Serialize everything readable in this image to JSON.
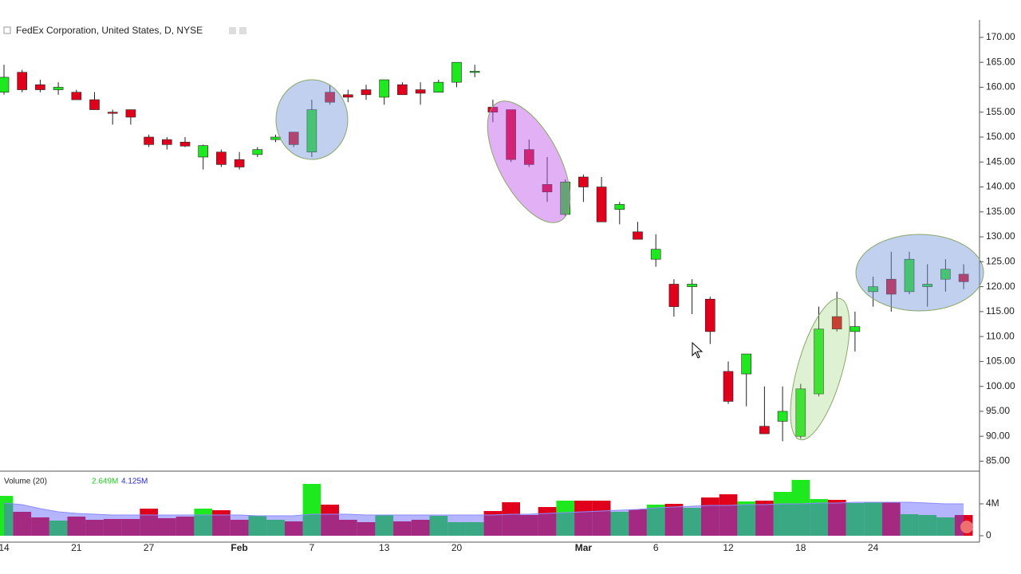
{
  "chart_data": {
    "type": "candlestick",
    "title": "FedEx Corporation, United States, D, NYSE",
    "categories": [
      "14",
      null,
      null,
      null,
      "21",
      null,
      null,
      null,
      "27",
      null,
      null,
      null,
      null,
      "Feb",
      null,
      null,
      null,
      "7",
      null,
      null,
      null,
      "13",
      null,
      null,
      null,
      "20",
      null,
      null,
      null,
      null,
      null,
      null,
      "Mar",
      null,
      null,
      null,
      "6",
      null,
      null,
      null,
      "12",
      null,
      null,
      null,
      "18",
      null,
      null,
      null,
      "24",
      null,
      null,
      null,
      null,
      null
    ],
    "open": [
      159,
      163,
      160.5,
      159.5,
      159,
      157.5,
      155,
      155.5,
      150,
      149.5,
      149,
      146,
      147,
      145.5,
      146.5,
      149.5,
      151,
      147,
      159,
      158.5,
      159.5,
      158,
      160.5,
      159.5,
      159,
      161,
      163,
      156,
      155.5,
      147.5,
      140.5,
      134.5,
      142,
      140,
      135.5,
      131,
      125.5,
      120.5,
      120,
      117.5,
      103,
      102.5,
      92,
      93,
      90,
      98.5,
      114,
      111,
      119,
      121.5,
      119,
      120,
      121.5,
      122.5
    ],
    "high": [
      164.5,
      163.5,
      161.5,
      161,
      159.5,
      159,
      155.5,
      155.5,
      150.5,
      150,
      150,
      148.5,
      147.5,
      147,
      148,
      150.5,
      151,
      157.5,
      160.5,
      159.5,
      160.5,
      161.5,
      161,
      161,
      161.5,
      165,
      164.5,
      157.5,
      155.5,
      149.5,
      146,
      141.5,
      142.5,
      142,
      137,
      133,
      130.5,
      121.5,
      121.5,
      118,
      105,
      106.5,
      100,
      100,
      100.5,
      116,
      119,
      115,
      122,
      127,
      127,
      124.5,
      125.5,
      124.5
    ],
    "low": [
      158.5,
      159,
      159,
      158.5,
      157.5,
      155.5,
      152.5,
      152.5,
      148,
      147.5,
      148,
      143.5,
      144,
      143.5,
      146,
      149,
      148,
      146,
      156.5,
      157,
      157.5,
      156.5,
      158.5,
      156.5,
      159,
      160,
      162,
      153,
      145,
      144,
      137,
      134,
      137,
      133,
      132.5,
      129.5,
      124,
      114,
      114.5,
      108.5,
      96.5,
      96,
      90.5,
      89,
      89.5,
      98,
      111,
      107,
      116,
      115,
      118.5,
      116,
      119,
      119.5
    ],
    "close": [
      162,
      159.5,
      159.5,
      160,
      157.5,
      155.5,
      154.8,
      154,
      148.5,
      148.5,
      148.2,
      148.3,
      144.5,
      144,
      147.5,
      150,
      148.5,
      155.5,
      157,
      158,
      158.5,
      161.5,
      158.5,
      158.8,
      161,
      165,
      163.2,
      155,
      145.5,
      144.5,
      139,
      141,
      140,
      133,
      136.5,
      129.5,
      127.5,
      116,
      120.5,
      111,
      97,
      106.5,
      90.5,
      95,
      99.5,
      111.5,
      111.5,
      112,
      120,
      118.5,
      125.5,
      120.5,
      123.5,
      121
    ],
    "up_color": "#1ee81e",
    "down_color": "#e0001b",
    "ylim": [
      83,
      173.5
    ],
    "yticks": [
      {
        "value": 170,
        "label": "170.00"
      },
      {
        "value": 165,
        "label": "165.00"
      },
      {
        "value": 160,
        "label": "160.00"
      },
      {
        "value": 155,
        "label": "155.00"
      },
      {
        "value": 150,
        "label": "150.00"
      },
      {
        "value": 145,
        "label": "145.00"
      },
      {
        "value": 140,
        "label": "140.00"
      },
      {
        "value": 135,
        "label": "135.00"
      },
      {
        "value": 130,
        "label": "130.00"
      },
      {
        "value": 125,
        "label": "125.00"
      },
      {
        "value": 120,
        "label": "120.00"
      },
      {
        "value": 115,
        "label": "115.00"
      },
      {
        "value": 110,
        "label": "110.00"
      },
      {
        "value": 105,
        "label": "105.00"
      },
      {
        "value": 100,
        "label": "100.00"
      },
      {
        "value": 95,
        "label": "95.00"
      },
      {
        "value": 90,
        "label": "90.00"
      },
      {
        "value": 85,
        "label": "85.00"
      }
    ],
    "volume_title": "Volume (20)",
    "volume_last": "2.649M",
    "volume_ma_last": "4.125M",
    "volume": [
      5.0,
      3.0,
      2.3,
      1.9,
      2.4,
      2.0,
      2.1,
      2.1,
      3.4,
      2.2,
      2.4,
      3.4,
      3.2,
      2.0,
      2.5,
      2.0,
      1.8,
      6.5,
      3.9,
      2.0,
      1.7,
      2.6,
      1.8,
      2.0,
      2.5,
      1.7,
      1.7,
      3.1,
      4.2,
      2.6,
      3.6,
      4.4,
      4.4,
      4.4,
      3.0,
      3.3,
      3.9,
      4.0,
      3.5,
      4.8,
      5.2,
      4.3,
      4.4,
      5.5,
      7.0,
      4.6,
      4.5,
      4.1,
      4.2,
      4.2,
      2.7,
      2.6,
      2.3,
      2.6
    ],
    "volume_ma": [
      4.1,
      3.9,
      3.4,
      3.0,
      2.8,
      2.7,
      2.6,
      2.6,
      2.6,
      2.6,
      2.6,
      2.6,
      2.6,
      2.6,
      2.5,
      2.5,
      2.5,
      2.7,
      2.7,
      2.7,
      2.6,
      2.6,
      2.6,
      2.6,
      2.6,
      2.6,
      2.6,
      2.6,
      2.7,
      2.7,
      2.8,
      2.9,
      3.0,
      3.1,
      3.2,
      3.3,
      3.5,
      3.6,
      3.7,
      3.8,
      3.8,
      3.9,
      3.9,
      4.0,
      4.0,
      4.1,
      4.1,
      4.2,
      4.2,
      4.2,
      4.2,
      4.1,
      4.0,
      4.0
    ],
    "vlim": [
      0,
      7.6
    ],
    "vticks": [
      {
        "value": 4,
        "label": "4M"
      },
      0
    ]
  }
}
